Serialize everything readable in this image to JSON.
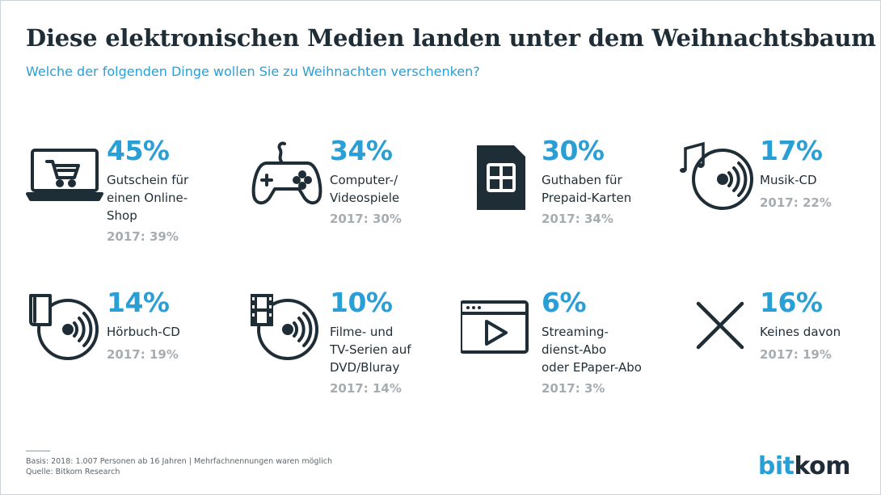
{
  "title": "Diese elektronischen Medien landen unter dem Weihnachtsbaum",
  "subtitle": "Welche der folgenden Dinge wollen Sie zu Weihnachten verschenken?",
  "colors": {
    "accent": "#2a9fd6",
    "text": "#1f2d36",
    "muted": "#a6adb2"
  },
  "chart_data": {
    "type": "table",
    "categories": [
      "Gutschein für einen Online-Shop",
      "Computer-/ Videospiele",
      "Guthaben für Prepaid-Karten",
      "Musik-CD",
      "Hörbuch-CD",
      "Filme- und TV-Serien auf DVD/Bluray",
      "Streaming-dienst-Abo oder EPaper-Abo",
      "Keines davon"
    ],
    "series": [
      {
        "values": [
          45,
          34,
          30,
          17,
          14,
          10,
          6,
          16
        ]
      },
      {
        "name": "2017",
        "values": [
          39,
          30,
          34,
          22,
          19,
          14,
          3,
          19
        ]
      }
    ]
  },
  "items": [
    {
      "icon": "laptop-cart-icon",
      "pct": "45%",
      "label": "Gutschein für\neinen Online-\nShop",
      "prev": "2017: 39%"
    },
    {
      "icon": "gamepad-icon",
      "pct": "34%",
      "label": "Computer-/\nVideospiele",
      "prev": "2017: 30%"
    },
    {
      "icon": "sim-card-icon",
      "pct": "30%",
      "label": "Guthaben für\nPrepaid-Karten",
      "prev": "2017: 34%"
    },
    {
      "icon": "music-cd-icon",
      "pct": "17%",
      "label": "Musik-CD",
      "prev": "2017: 22%"
    },
    {
      "icon": "audiobook-cd-icon",
      "pct": "14%",
      "label": "Hörbuch-CD",
      "prev": "2017: 19%"
    },
    {
      "icon": "film-dvd-icon",
      "pct": "10%",
      "label": "Filme- und\nTV-Serien auf\nDVD/Bluray",
      "prev": "2017: 14%"
    },
    {
      "icon": "video-player-icon",
      "pct": "6%",
      "label": "Streaming-\ndienst-Abo\noder EPaper-Abo",
      "prev": "2017: 3%"
    },
    {
      "icon": "cross-icon",
      "pct": "16%",
      "label": "Keines davon",
      "prev": "2017: 19%"
    }
  ],
  "footer": {
    "basis": "Basis: 2018: 1.007 Personen ab 16 Jahren | Mehrfachnennungen waren möglich",
    "source": "Quelle: Bitkom Research"
  },
  "logo": {
    "part1": "bit",
    "part2": "kom"
  }
}
